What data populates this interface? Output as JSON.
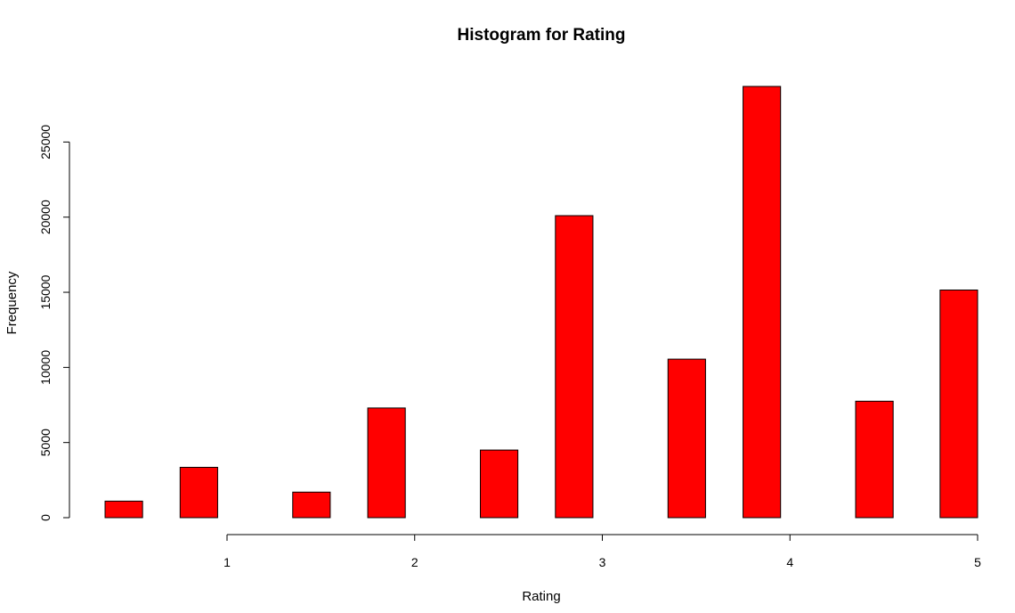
{
  "chart_data": {
    "type": "bar",
    "title": "Histogram for Rating",
    "xlabel": "Rating",
    "ylabel": "Frequency",
    "bar_color": "#ff0000",
    "xlim": [
      0.35,
      5.0
    ],
    "ylim": [
      0,
      28700
    ],
    "x_ticks": [
      1,
      2,
      3,
      4,
      5
    ],
    "y_ticks": [
      0,
      5000,
      10000,
      15000,
      20000,
      25000
    ],
    "bins": [
      {
        "x0": 0.35,
        "x1": 0.55,
        "value": 1100
      },
      {
        "x0": 0.75,
        "x1": 0.95,
        "value": 3350
      },
      {
        "x0": 1.15,
        "x1": 1.35,
        "value": 0
      },
      {
        "x0": 1.35,
        "x1": 1.55,
        "value": 1700
      },
      {
        "x0": 1.75,
        "x1": 1.95,
        "value": 7300
      },
      {
        "x0": 2.15,
        "x1": 2.35,
        "value": 0
      },
      {
        "x0": 2.35,
        "x1": 2.55,
        "value": 4500
      },
      {
        "x0": 2.75,
        "x1": 2.95,
        "value": 20100
      },
      {
        "x0": 3.15,
        "x1": 3.35,
        "value": 0
      },
      {
        "x0": 3.35,
        "x1": 3.55,
        "value": 10550
      },
      {
        "x0": 3.75,
        "x1": 3.95,
        "value": 28700
      },
      {
        "x0": 4.15,
        "x1": 4.35,
        "value": 0
      },
      {
        "x0": 4.35,
        "x1": 4.55,
        "value": 7750
      },
      {
        "x0": 4.8,
        "x1": 5.0,
        "value": 15150
      }
    ],
    "grid": false,
    "legend": "none"
  }
}
